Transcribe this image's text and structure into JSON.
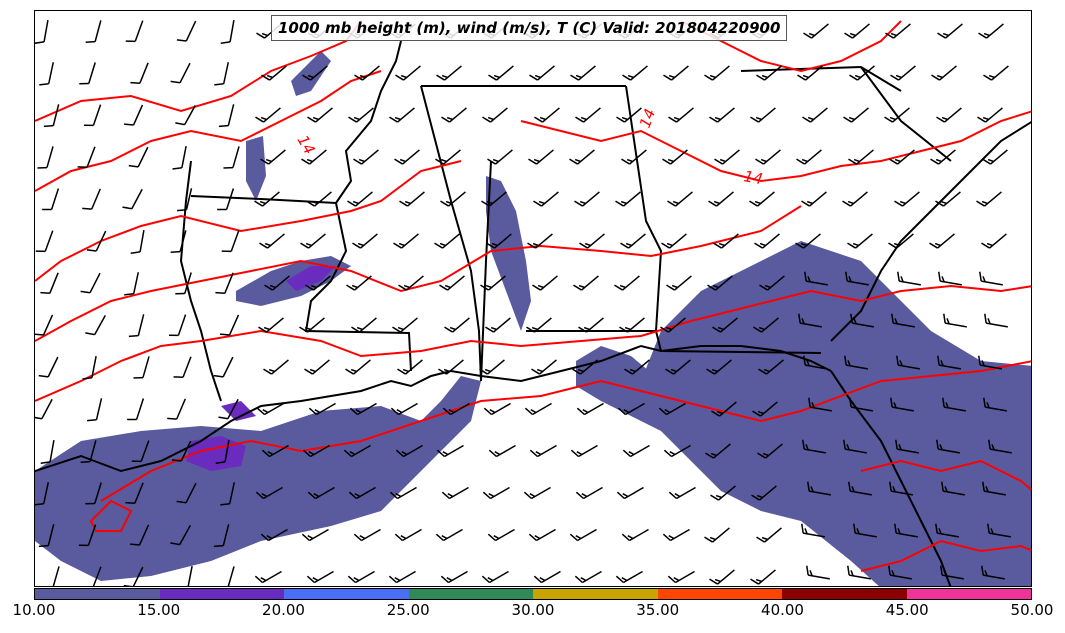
{
  "title": "1000 mb height (m), wind (m/s), T (C) Valid: 201804220900",
  "colorbar": {
    "colors": [
      "#5a5a9e",
      "#6a2bbf",
      "#4a6ff5",
      "#2e8b57",
      "#c8a400",
      "#ff4500",
      "#8b0000",
      "#ee3399"
    ],
    "ticks": [
      "10.00",
      "15.00",
      "20.00",
      "25.00",
      "30.00",
      "35.00",
      "40.00",
      "45.00",
      "50.00"
    ]
  },
  "contour_labels": [
    "14",
    "14",
    "14"
  ],
  "colors": {
    "shading": "#5a5a9e",
    "shading_strong": "#6a2bbf",
    "contour": "#ff0000",
    "boundary": "#000000"
  }
}
